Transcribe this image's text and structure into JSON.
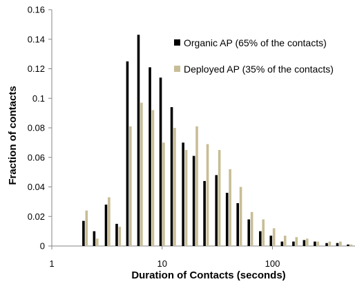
{
  "chart_data": {
    "type": "bar",
    "x_scale": "log",
    "xlabel": "Duration of Contacts (seconds)",
    "ylabel": "Fraction of contacts",
    "xlim": [
      1,
      560
    ],
    "ylim": [
      0,
      0.16
    ],
    "y_ticks": [
      "0",
      "0.02",
      "0.04",
      "0.06",
      "0.08",
      "0.1",
      "0.12",
      "0.14",
      "0.16"
    ],
    "x_ticks": [
      "1",
      "10",
      "100"
    ],
    "grid": false,
    "legend_placement": "top-right",
    "colors": {
      "organic": "#000000",
      "deployed": "#c8bd96"
    },
    "x": [
      2,
      2.5,
      3.2,
      4,
      5,
      6.3,
      8,
      10,
      12.6,
      16,
      20,
      25,
      32,
      40,
      50,
      63,
      80,
      100,
      126,
      160,
      200,
      250,
      320,
      400,
      500
    ],
    "series": [
      {
        "name": "Organic AP (65% of the contacts)",
        "color": "#000000",
        "values": [
          0.017,
          0.01,
          0.028,
          0.015,
          0.125,
          0.143,
          0.121,
          0.114,
          0.094,
          0.07,
          0.061,
          0.044,
          0.048,
          0.036,
          0.029,
          0.018,
          0.01,
          0.007,
          0.003,
          0.003,
          0.004,
          0.003,
          0.002,
          0.002,
          0.001
        ]
      },
      {
        "name": "Deployed AP (35% of the contacts)",
        "color": "#c8bd96",
        "values": [
          0.024,
          0.005,
          0.033,
          0.013,
          0.081,
          0.097,
          0.092,
          0.07,
          0.08,
          0.065,
          0.081,
          0.069,
          0.065,
          0.052,
          0.04,
          0.023,
          0.018,
          0.012,
          0.007,
          0.006,
          0.005,
          0.003,
          0.003,
          0.003,
          0.001
        ]
      }
    ]
  }
}
